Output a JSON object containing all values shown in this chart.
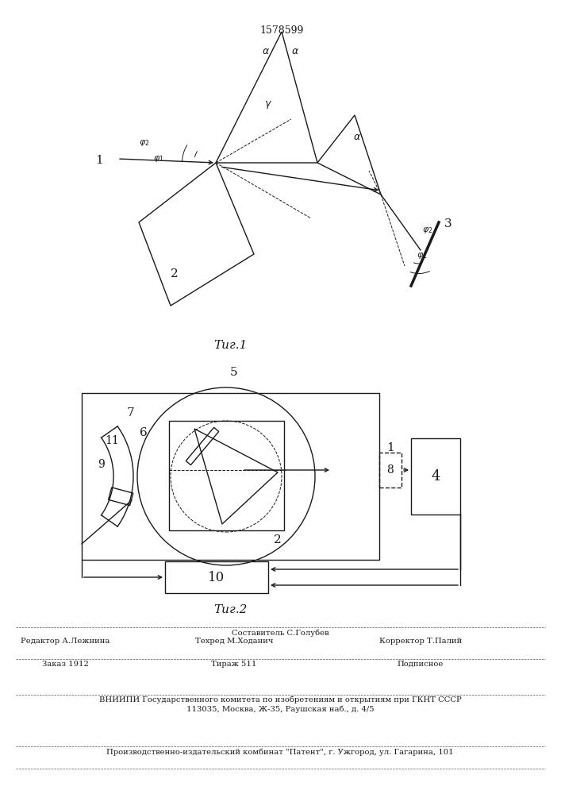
{
  "patent_number": "1578599",
  "fig1_caption": "Τиг.1",
  "fig2_caption": "Τиг.2",
  "bg_color": "#ffffff",
  "line_color": "#1a1a1a",
  "footer_lines": [
    "Составитель С.Голубев",
    "Редактор А.Лежнина",
    "Техред М.Ходанич",
    "Корректор Т.Палий",
    "Заказ 1912",
    "Тираж 511",
    "Подписное",
    "ВНИИПИ Государственного комитета по изобретениям и открытиям при ГКНТ СССР",
    "113035, Москва, Ж-35, Раушская наб., д. 4/5",
    "Производственно-издательский комбинат \"Патент\", г. Ужгород, ул. Гагарина, 101"
  ]
}
